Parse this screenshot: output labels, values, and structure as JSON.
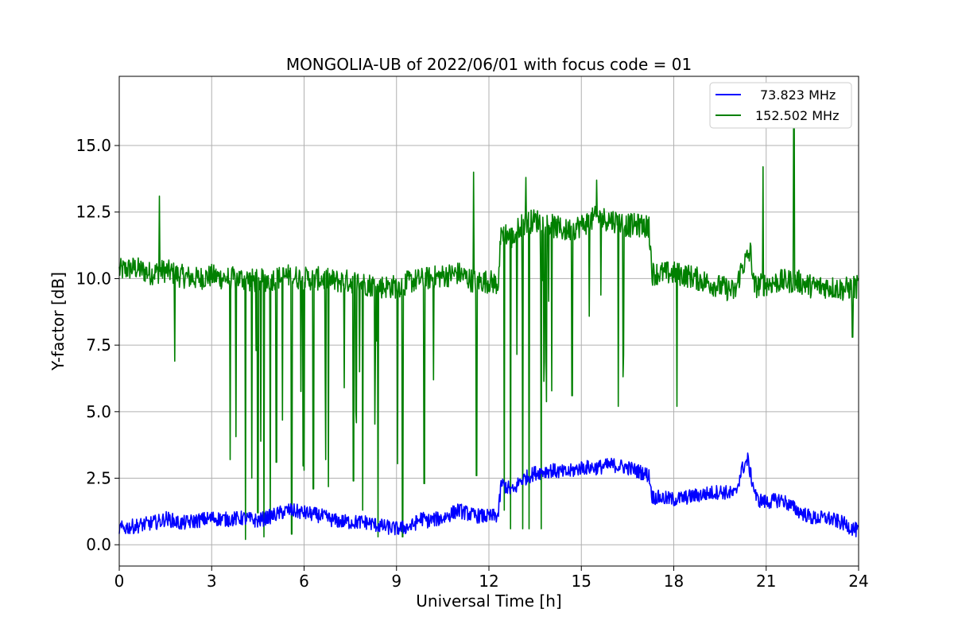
{
  "chart_data": {
    "type": "line",
    "title": "MONGOLIA-UB of 2022/06/01 with focus code = 01",
    "xlabel": "Universal Time [h]",
    "ylabel": "Y-factor [dB]",
    "xlim": [
      0,
      24
    ],
    "ylim": [
      -0.8,
      17.6
    ],
    "x_ticks": [
      0,
      3,
      6,
      9,
      12,
      15,
      18,
      21,
      24
    ],
    "y_ticks": [
      0.0,
      2.5,
      5.0,
      7.5,
      10.0,
      12.5,
      15.0
    ],
    "x_tick_labels": [
      "0",
      "3",
      "6",
      "9",
      "12",
      "15",
      "18",
      "21",
      "24"
    ],
    "y_tick_labels": [
      "0.0",
      "2.5",
      "5.0",
      "7.5",
      "10.0",
      "12.5",
      "15.0"
    ],
    "grid": true,
    "legend_position": "top-right",
    "series": [
      {
        "name": "73.823 MHz",
        "color": "#0000ff",
        "x": [
          0,
          0.5,
          1,
          1.4,
          1.5,
          2,
          2.5,
          3,
          3.5,
          4,
          4.5,
          5,
          5.5,
          6,
          6.5,
          7,
          7.5,
          8,
          8.5,
          9,
          9.5,
          9.8,
          10,
          10.5,
          11,
          11.5,
          12,
          12.3,
          12.4,
          12.8,
          13,
          13.5,
          14,
          14.5,
          15,
          15.5,
          16,
          16.5,
          17,
          17.2,
          17.3,
          18,
          18.5,
          19,
          19.5,
          20,
          20.2,
          20.4,
          20.5,
          20.7,
          21,
          21.5,
          22,
          22.5,
          23,
          23.5,
          24
        ],
        "values": [
          0.6,
          0.7,
          0.8,
          0.9,
          1.0,
          0.8,
          0.9,
          1.0,
          0.95,
          1.0,
          0.9,
          1.1,
          1.3,
          1.2,
          1.1,
          0.9,
          0.85,
          0.85,
          0.7,
          0.6,
          0.7,
          1.0,
          0.9,
          1.0,
          1.3,
          1.1,
          1.05,
          1.1,
          2.3,
          2.0,
          2.4,
          2.7,
          2.8,
          2.7,
          2.9,
          2.9,
          3.0,
          2.9,
          2.7,
          2.6,
          1.8,
          1.7,
          1.8,
          1.9,
          2.0,
          1.9,
          2.8,
          3.2,
          2.6,
          1.7,
          1.6,
          1.7,
          1.3,
          1.0,
          1.0,
          0.8,
          0.5
        ]
      },
      {
        "name": "152.502 MHz",
        "color": "#008000",
        "x": [
          0,
          0.5,
          1,
          1.5,
          2,
          2.5,
          3,
          3.5,
          4,
          4.5,
          5,
          5.5,
          6,
          6.5,
          7,
          7.5,
          8,
          8.5,
          9,
          9.5,
          10,
          10.5,
          11,
          11.5,
          12,
          12.3,
          12.4,
          12.8,
          13,
          13.5,
          14,
          14.5,
          15,
          15.5,
          16,
          16.5,
          17,
          17.2,
          17.3,
          18,
          18.5,
          19,
          19.5,
          20,
          20.2,
          20.5,
          20.6,
          21,
          21.5,
          22,
          22.5,
          23,
          23.5,
          24
        ],
        "values": [
          10.3,
          10.4,
          10.2,
          10.3,
          10.1,
          10.0,
          10.1,
          10.0,
          10.0,
          9.9,
          10.0,
          10.1,
          10.0,
          10.0,
          9.9,
          9.9,
          9.8,
          9.7,
          9.7,
          9.9,
          10.0,
          10.1,
          10.2,
          9.9,
          9.9,
          9.8,
          11.8,
          11.5,
          12.0,
          12.2,
          12.0,
          11.8,
          12.0,
          12.3,
          12.2,
          12.0,
          12.0,
          11.9,
          10.2,
          10.2,
          10.1,
          9.9,
          9.7,
          9.5,
          10.4,
          11.0,
          9.7,
          9.8,
          9.9,
          9.9,
          9.7,
          9.7,
          9.6,
          9.7
        ]
      }
    ],
    "green_spikes": [
      {
        "x": 1.3,
        "y": 13.1
      },
      {
        "x": 1.8,
        "y": 6.9
      },
      {
        "x": 3.6,
        "y": 3.2
      },
      {
        "x": 4.1,
        "y": 0.2
      },
      {
        "x": 4.3,
        "y": 2.5
      },
      {
        "x": 4.5,
        "y": 1.2
      },
      {
        "x": 4.7,
        "y": 0.3
      },
      {
        "x": 4.9,
        "y": 1.0
      },
      {
        "x": 5.1,
        "y": 3.1
      },
      {
        "x": 5.3,
        "y": 2.0
      },
      {
        "x": 5.6,
        "y": 0.4
      },
      {
        "x": 6.0,
        "y": 2.8
      },
      {
        "x": 6.3,
        "y": 2.1
      },
      {
        "x": 6.7,
        "y": 3.2
      },
      {
        "x": 7.3,
        "y": 5.9
      },
      {
        "x": 7.6,
        "y": 2.4
      },
      {
        "x": 7.9,
        "y": 1.3
      },
      {
        "x": 8.4,
        "y": 0.3
      },
      {
        "x": 9.2,
        "y": 0.3
      },
      {
        "x": 9.9,
        "y": 2.3
      },
      {
        "x": 10.2,
        "y": 6.2
      },
      {
        "x": 11.5,
        "y": 14.0
      },
      {
        "x": 11.6,
        "y": 2.6
      },
      {
        "x": 12.5,
        "y": 1.3
      },
      {
        "x": 12.7,
        "y": 0.6
      },
      {
        "x": 13.1,
        "y": 0.6
      },
      {
        "x": 13.2,
        "y": 13.8
      },
      {
        "x": 13.3,
        "y": 0.6
      },
      {
        "x": 13.7,
        "y": 0.6
      },
      {
        "x": 14.7,
        "y": 5.6
      },
      {
        "x": 15.5,
        "y": 13.7
      },
      {
        "x": 16.2,
        "y": 5.2
      },
      {
        "x": 18.1,
        "y": 5.2
      },
      {
        "x": 20.9,
        "y": 14.2
      },
      {
        "x": 21.9,
        "y": 16.4
      },
      {
        "x": 23.8,
        "y": 7.8
      }
    ]
  }
}
